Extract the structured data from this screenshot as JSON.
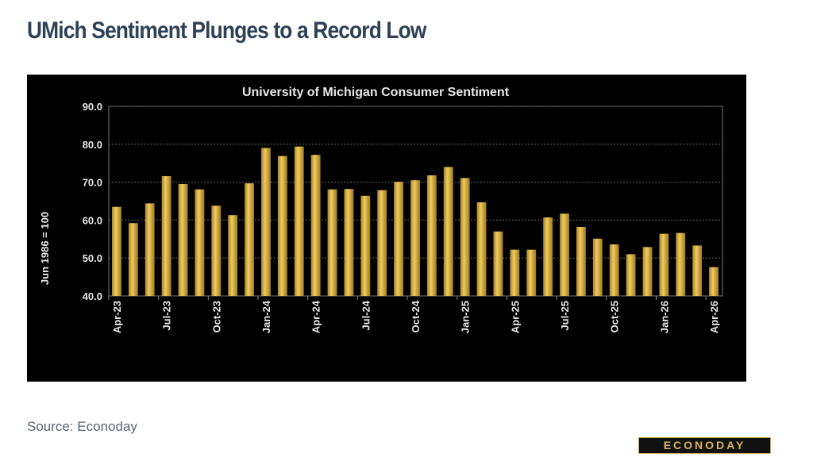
{
  "headline": "UMich Sentiment Plunges to a Record Low",
  "source": "Source: Econoday",
  "logo": "ECONODAY",
  "colors": {
    "bar": "#d4a93c",
    "background": "#000000"
  },
  "chart_data": {
    "type": "bar",
    "title": "University of Michigan Consumer Sentiment",
    "ylabel": "Jun 1986 = 100",
    "xlabel": "",
    "ylim": [
      40,
      90
    ],
    "yticks": [
      "40.0",
      "50.0",
      "60.0",
      "70.0",
      "80.0",
      "90.0"
    ],
    "grid": true,
    "categories": [
      "Apr-23",
      "May-23",
      "Jun-23",
      "Jul-23",
      "Aug-23",
      "Sep-23",
      "Oct-23",
      "Nov-23",
      "Dec-23",
      "Jan-24",
      "Feb-24",
      "Mar-24",
      "Apr-24",
      "May-24",
      "Jun-24",
      "Jul-24",
      "Aug-24",
      "Sep-24",
      "Oct-24",
      "Nov-24",
      "Dec-24",
      "Jan-25",
      "Feb-25",
      "Mar-25",
      "Apr-25",
      "May-25",
      "Jun-25",
      "Jul-25",
      "Aug-25",
      "Sep-25",
      "Oct-25",
      "Nov-25",
      "Dec-25",
      "Jan-26",
      "Feb-26",
      "Mar-26",
      "Apr-26"
    ],
    "xticklabels": [
      "Apr-23",
      "Jul-23",
      "Oct-23",
      "Jan-24",
      "Apr-24",
      "Jul-24",
      "Oct-24",
      "Jan-25",
      "Apr-25",
      "Jul-25",
      "Oct-25",
      "Jan-26",
      "Apr-26"
    ],
    "values": [
      63.5,
      59.2,
      64.4,
      71.6,
      69.5,
      68.1,
      63.8,
      61.3,
      69.7,
      79.0,
      76.9,
      79.4,
      77.2,
      68.1,
      68.2,
      66.4,
      67.9,
      70.1,
      70.5,
      71.8,
      74.0,
      71.1,
      64.7,
      57.0,
      52.2,
      52.2,
      60.7,
      61.7,
      58.2,
      55.1,
      53.6,
      51.0,
      52.9,
      56.4,
      56.6,
      53.3,
      47.6
    ]
  }
}
